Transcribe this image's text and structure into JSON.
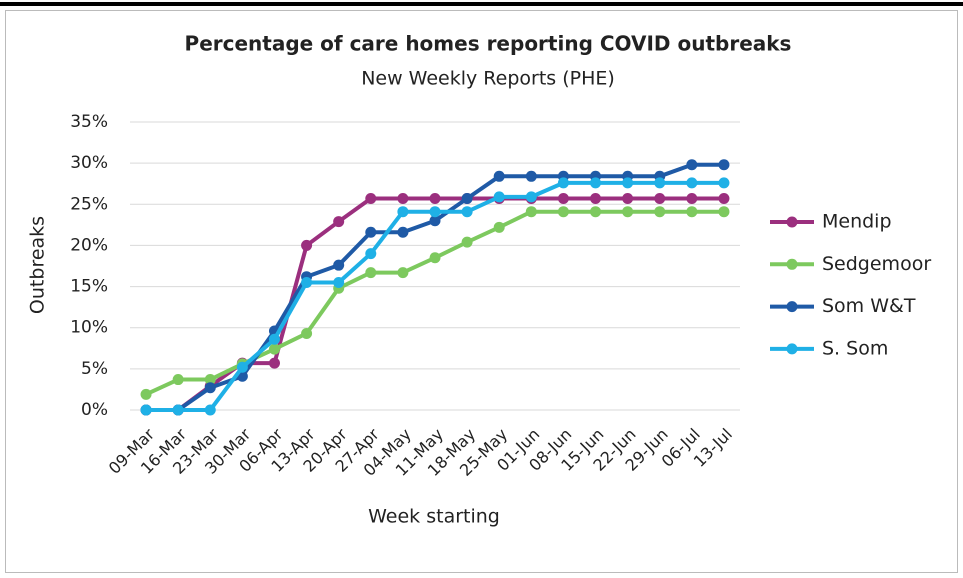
{
  "chart_data": {
    "type": "line",
    "title": "Percentage of care homes reporting COVID outbreaks",
    "subtitle": "New Weekly Reports (PHE)",
    "x_label": "Week starting",
    "y_label": "Outbreaks",
    "categories": [
      "09-Mar",
      "16-Mar",
      "23-Mar",
      "30-Mar",
      "06-Apr",
      "13-Apr",
      "20-Apr",
      "27-Apr",
      "04-May",
      "11-May",
      "18-May",
      "25-May",
      "01-Jun",
      "08-Jun",
      "15-Jun",
      "22-Jun",
      "29-Jun",
      "06-Jul",
      "13-Jul"
    ],
    "series": [
      {
        "name": "Mendip",
        "color": "#9b2f7e",
        "values": [
          0,
          0,
          2.9,
          5.7,
          5.7,
          20,
          22.9,
          25.7,
          25.7,
          25.7,
          25.7,
          25.7,
          25.7,
          25.7,
          25.7,
          25.7,
          25.7,
          25.7,
          25.7
        ]
      },
      {
        "name": "Sedgemoor",
        "color": "#7dc95e",
        "values": [
          1.9,
          3.7,
          3.7,
          5.6,
          7.4,
          9.3,
          14.8,
          16.7,
          16.7,
          18.5,
          20.4,
          22.2,
          24.1,
          24.1,
          24.1,
          24.1,
          24.1,
          24.1,
          24.1
        ]
      },
      {
        "name": "Som W&T",
        "color": "#1f5aa6",
        "values": [
          0,
          0,
          2.7,
          4.1,
          9.6,
          16.2,
          17.6,
          21.6,
          21.6,
          23,
          25.7,
          28.4,
          28.4,
          28.4,
          28.4,
          28.4,
          28.4,
          29.8,
          29.8
        ]
      },
      {
        "name": "S. Som",
        "color": "#1fb0e6",
        "values": [
          0,
          0,
          0,
          5.2,
          8.6,
          15.5,
          15.5,
          19,
          24.1,
          24.1,
          24.1,
          25.9,
          25.9,
          27.6,
          27.6,
          27.6,
          27.6,
          27.6,
          27.6
        ]
      }
    ],
    "ylim": [
      0,
      35
    ],
    "yticks": [
      {
        "value": 0,
        "label": "0%"
      },
      {
        "value": 5,
        "label": "5%"
      },
      {
        "value": 10,
        "label": "10%"
      },
      {
        "value": 15,
        "label": "15%"
      },
      {
        "value": 20,
        "label": "20%"
      },
      {
        "value": 25,
        "label": "25%"
      },
      {
        "value": 30,
        "label": "30%"
      },
      {
        "value": 35,
        "label": "35%"
      }
    ],
    "grid": true,
    "legend": "right"
  }
}
